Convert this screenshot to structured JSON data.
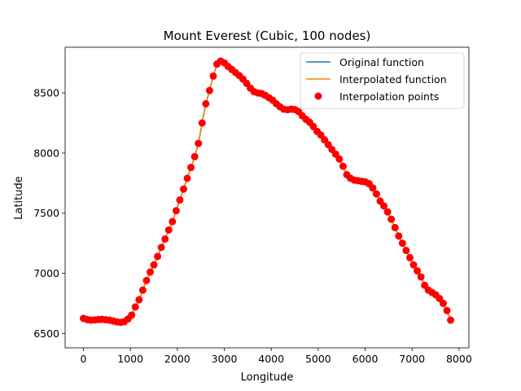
{
  "chart_data": {
    "type": "line",
    "title": "Mount Everest (Cubic, 100 nodes)",
    "xlabel": "Longitude",
    "ylabel": "Latitude",
    "xlim": [
      -390,
      8210
    ],
    "ylim": [
      6380,
      8880
    ],
    "xticks": [
      0,
      1000,
      2000,
      3000,
      4000,
      5000,
      6000,
      7000,
      8000
    ],
    "yticks": [
      6500,
      7000,
      7500,
      8000,
      8500
    ],
    "grid": false,
    "legend_position": "top-right",
    "series": [
      {
        "name": "Original function",
        "kind": "line",
        "color": "#1f77b4"
      },
      {
        "name": "Interpolated function",
        "kind": "line",
        "color": "#ff7f0e"
      },
      {
        "name": "Interpolation points",
        "kind": "scatter",
        "color": "#ff0000"
      }
    ],
    "points": {
      "x": [
        0,
        79,
        158,
        237,
        316,
        395,
        474,
        553,
        632,
        711,
        790,
        869,
        948,
        1027,
        1106,
        1185,
        1264,
        1343,
        1422,
        1501,
        1580,
        1659,
        1738,
        1817,
        1896,
        1975,
        2054,
        2133,
        2212,
        2291,
        2370,
        2449,
        2528,
        2607,
        2686,
        2765,
        2844,
        2923,
        3002,
        3081,
        3160,
        3239,
        3318,
        3397,
        3476,
        3555,
        3634,
        3713,
        3792,
        3871,
        3950,
        4029,
        4108,
        4187,
        4266,
        4345,
        4424,
        4503,
        4582,
        4661,
        4740,
        4819,
        4898,
        4977,
        5056,
        5135,
        5214,
        5293,
        5372,
        5451,
        5530,
        5609,
        5688,
        5767,
        5846,
        5925,
        6004,
        6083,
        6162,
        6241,
        6320,
        6399,
        6478,
        6557,
        6636,
        6715,
        6794,
        6873,
        6952,
        7031,
        7110,
        7189,
        7268,
        7347,
        7426,
        7505,
        7584,
        7663,
        7742,
        7821
      ],
      "y": [
        6625,
        6615,
        6610,
        6612,
        6615,
        6617,
        6614,
        6610,
        6603,
        6596,
        6592,
        6597,
        6620,
        6652,
        6720,
        6780,
        6860,
        6940,
        7010,
        7070,
        7140,
        7215,
        7285,
        7360,
        7430,
        7520,
        7610,
        7700,
        7790,
        7880,
        7970,
        8080,
        8250,
        8410,
        8520,
        8640,
        8740,
        8765,
        8750,
        8720,
        8695,
        8670,
        8645,
        8615,
        8580,
        8540,
        8510,
        8500,
        8495,
        8480,
        8460,
        8440,
        8410,
        8385,
        8365,
        8360,
        8365,
        8362,
        8345,
        8310,
        8280,
        8255,
        8220,
        8180,
        8150,
        8110,
        8070,
        8030,
        7990,
        7950,
        7890,
        7820,
        7790,
        7775,
        7770,
        7765,
        7760,
        7745,
        7710,
        7660,
        7600,
        7560,
        7510,
        7450,
        7380,
        7310,
        7250,
        7190,
        7130,
        7070,
        7020,
        6970,
        6900,
        6860,
        6840,
        6820,
        6790,
        6750,
        6690,
        6610
      ]
    }
  }
}
